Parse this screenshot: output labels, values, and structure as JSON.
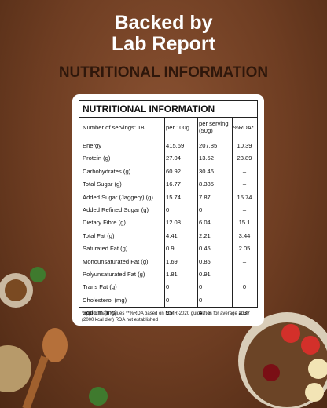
{
  "header": {
    "title_lines": [
      "Backed by",
      "Lab Report"
    ],
    "subtitle": "NUTRITIONAL INFORMATION"
  },
  "table": {
    "title": "NUTRITIONAL INFORMATION",
    "columns": [
      "Number of servings: 18",
      "per 100g",
      "per serving (50g)",
      "%RDA*"
    ],
    "rows": [
      [
        "Energy",
        "415.69",
        "207.85",
        "10.39"
      ],
      [
        "Protein (g)",
        "27.04",
        "13.52",
        "23.89"
      ],
      [
        "Carbohydrates (g)",
        "60.92",
        "30.46",
        "–"
      ],
      [
        "Total Sugar (g)",
        "16.77",
        "8.385",
        "–"
      ],
      [
        "Added Sugar (Jaggery) (g)",
        "15.74",
        "7.87",
        "15.74"
      ],
      [
        "Added Refined Sugar (g)",
        "0",
        "0",
        "–"
      ],
      [
        "Dietary Fibre (g)",
        "12.08",
        "6.04",
        "15.1"
      ],
      [
        "Total Fat (g)",
        "4.41",
        "2.21",
        "3.44"
      ],
      [
        "Saturated Fat (g)",
        "0.9",
        "0.45",
        "2.05"
      ],
      [
        "Monounsaturated Fat (g)",
        "1.69",
        "0.85",
        "–"
      ],
      [
        "Polyunsaturated Fat (g)",
        "1.81",
        "0.91",
        "–"
      ],
      [
        "Trans Fat (g)",
        "0",
        "0",
        "0"
      ],
      [
        "Cholesterol (mg)",
        "0",
        "0",
        "–"
      ],
      [
        "Sodium (mg)",
        "95",
        "47.5",
        "2.37"
      ]
    ],
    "footnote": "*approximate values **%RDA based on ICMR-2020 guidelines for average adult (2000 kcal diet) RDA not established"
  }
}
